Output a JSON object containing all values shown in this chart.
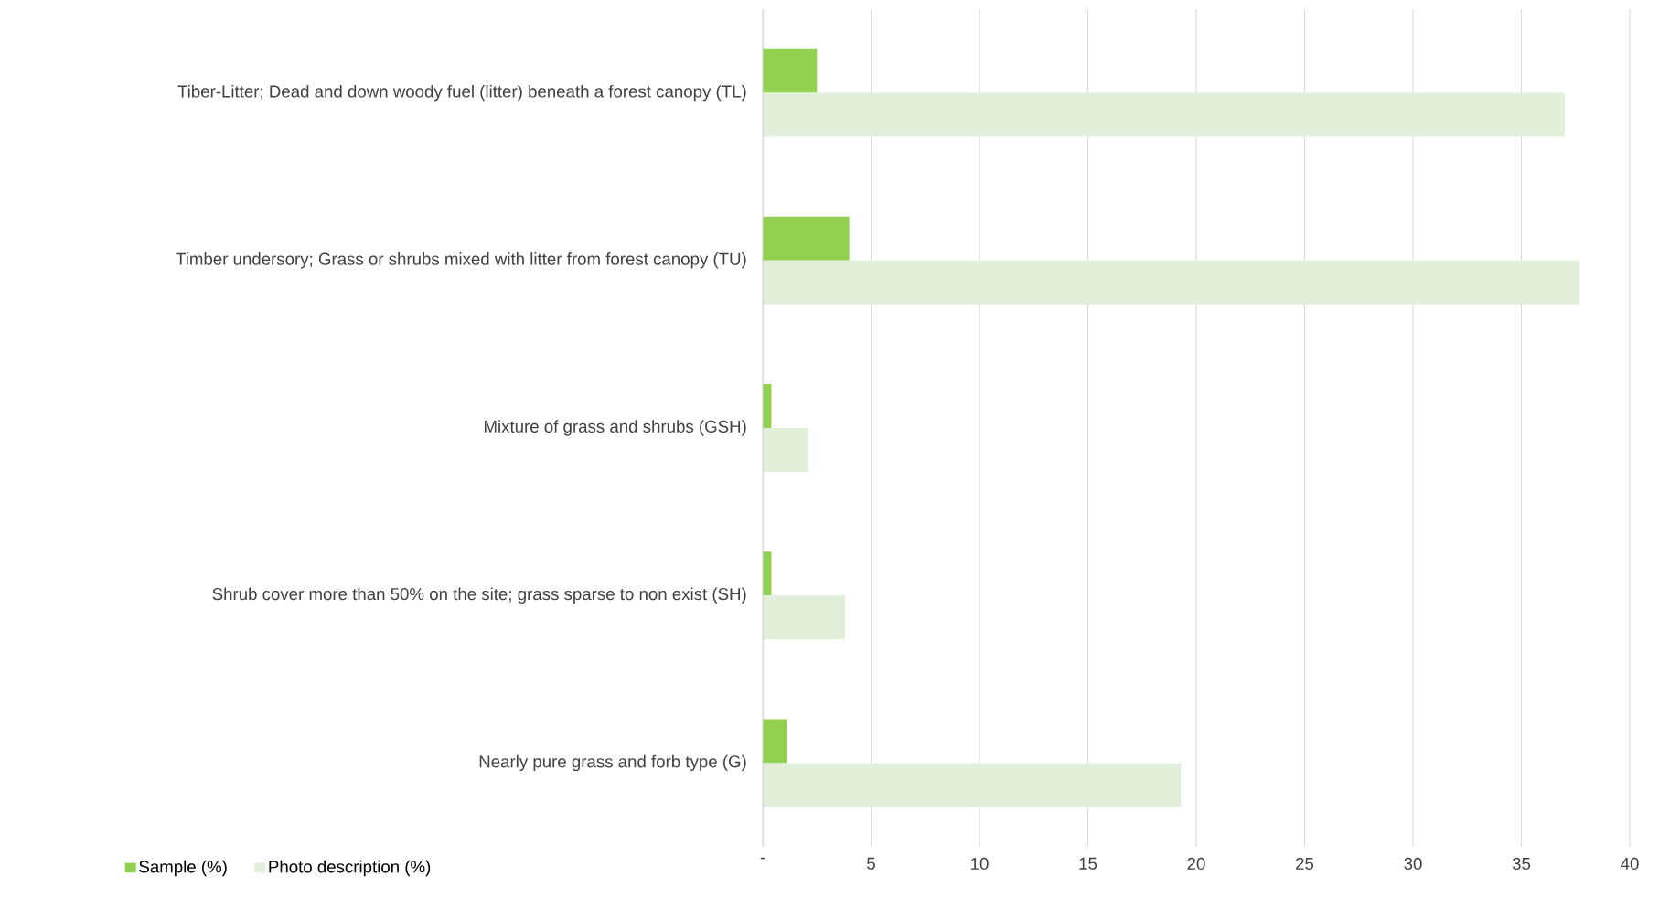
{
  "chart_data": {
    "type": "bar",
    "orientation": "horizontal",
    "categories": [
      "Tiber-Litter; Dead and down woody fuel (litter) beneath a forest canopy (TL)",
      "Timber undersory; Grass or shrubs mixed with litter from forest canopy (TU)",
      "Mixture of grass and shrubs (GSH)",
      "Shrub cover more than 50% on the site; grass sparse to non exist (SH)",
      "Nearly pure grass and forb type (G)"
    ],
    "series": [
      {
        "name": "Sample (%)",
        "color": "#92d050",
        "values": [
          2.5,
          4.0,
          0.4,
          0.4,
          1.1
        ]
      },
      {
        "name": "Photo description (%)",
        "color": "#e2efda",
        "values": [
          37.0,
          37.7,
          2.1,
          3.8,
          19.3
        ]
      }
    ],
    "xlim": [
      0,
      40
    ],
    "xticks": [
      {
        "value": 0,
        "label": "-"
      },
      5,
      10,
      15,
      20,
      25,
      30,
      35,
      40
    ],
    "grid": "x",
    "legend": "bottom left"
  }
}
